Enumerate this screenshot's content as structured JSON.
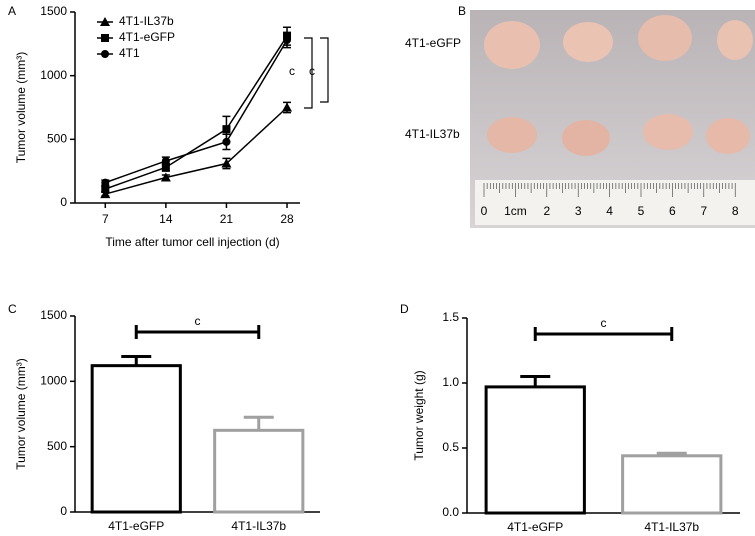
{
  "chart_data": [
    {
      "type": "line",
      "panel_label": "A",
      "x_label": "Time after tumor cell injection (d)",
      "y_label": "Tumor volume (mm³)",
      "x": [
        7,
        14,
        21,
        28
      ],
      "xlim": [
        3.5,
        29.5
      ],
      "xticks": [
        7,
        14,
        21,
        28
      ],
      "ylim": [
        0,
        1500
      ],
      "yticks": [
        0,
        500,
        1000,
        1500
      ],
      "series": [
        {
          "name": "4T1-IL37b",
          "color": "#000000",
          "marker": "triangle",
          "values": [
            70,
            200,
            310,
            750
          ],
          "errors": [
            15,
            20,
            40,
            40
          ]
        },
        {
          "name": "4T1-eGFP",
          "color": "#000000",
          "marker": "square",
          "values": [
            110,
            280,
            580,
            1310
          ],
          "errors": [
            20,
            30,
            100,
            70
          ]
        },
        {
          "name": "4T1",
          "color": "#000000",
          "marker": "circle",
          "values": [
            160,
            330,
            480,
            1280
          ],
          "errors": [
            20,
            30,
            60,
            60
          ]
        }
      ],
      "annotations": [
        "c",
        "c"
      ],
      "legend": "upper-left"
    },
    {
      "type": "bar",
      "panel_label": "C",
      "y_label": "Tumor volume (mm³)",
      "categories": [
        "4T1-eGFP",
        "4T1-IL37b"
      ],
      "values": [
        1120,
        625
      ],
      "errors": [
        70,
        100
      ],
      "colors": [
        "#000000",
        "#a0a0a0"
      ],
      "ylim": [
        0,
        1500
      ],
      "yticks": [
        0,
        500,
        1000,
        1500
      ],
      "annotations": [
        "c"
      ]
    },
    {
      "type": "bar",
      "panel_label": "D",
      "y_label": "Tumor weight (g)",
      "categories": [
        "4T1-eGFP",
        "4T1-IL37b"
      ],
      "values": [
        0.97,
        0.44
      ],
      "errors": [
        0.08,
        0.02
      ],
      "colors": [
        "#000000",
        "#a0a0a0"
      ],
      "ylim": [
        0,
        1.5
      ],
      "yticks": [
        {
          "value": 0,
          "label": "0.0"
        },
        {
          "value": 0.5,
          "label": "0.5"
        },
        {
          "value": 1,
          "label": "1.0"
        },
        {
          "value": 1.5,
          "label": "1.5"
        }
      ],
      "annotations": [
        "c"
      ]
    }
  ],
  "photo": {
    "panel_label": "B",
    "row_labels": [
      "4T1-eGFP",
      "4T1-IL37b"
    ],
    "ruler_labels": [
      "0",
      "1cm",
      "2",
      "3",
      "4",
      "5",
      "6",
      "7",
      "8"
    ]
  }
}
